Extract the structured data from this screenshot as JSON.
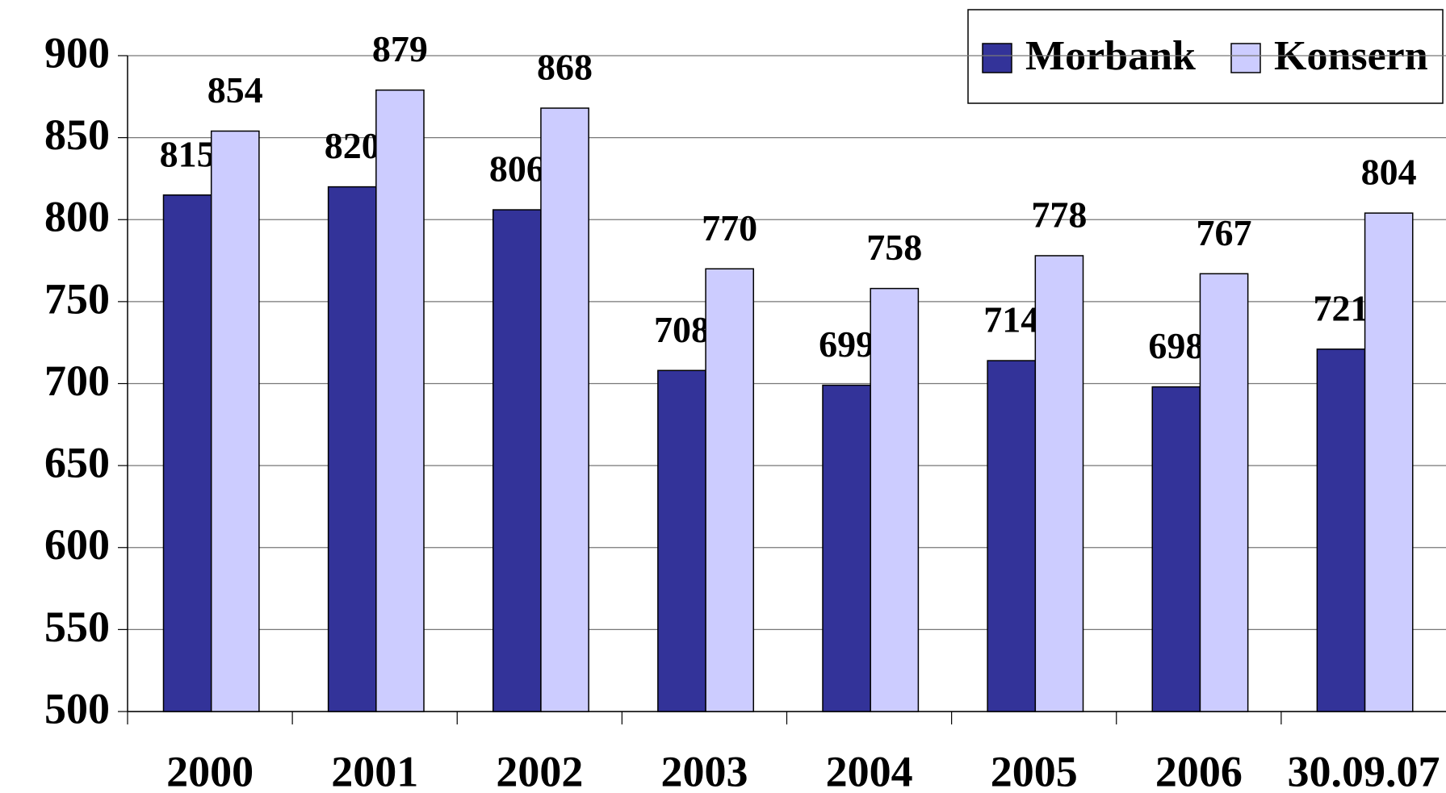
{
  "chart_data": {
    "type": "bar",
    "categories": [
      "2000",
      "2001",
      "2002",
      "2003",
      "2004",
      "2005",
      "2006",
      "30.09.07"
    ],
    "series": [
      {
        "name": "Morbank",
        "color": "#333399",
        "values": [
          815,
          820,
          806,
          708,
          699,
          714,
          698,
          721
        ]
      },
      {
        "name": "Konsern",
        "color": "#ccccff",
        "values": [
          854,
          879,
          868,
          770,
          758,
          778,
          767,
          804
        ]
      }
    ],
    "ylim": [
      500,
      900
    ],
    "yticks": [
      500,
      550,
      600,
      650,
      700,
      750,
      800,
      850,
      900
    ],
    "grid": true,
    "legend": "upper right"
  }
}
